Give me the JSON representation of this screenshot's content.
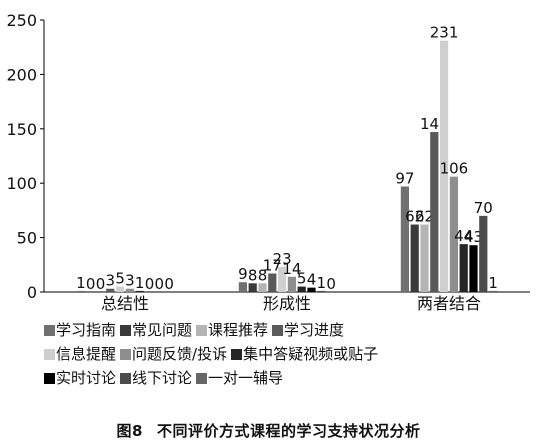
{
  "chart_data": {
    "type": "bar",
    "categories": [
      "总结性",
      "形成性",
      "两者结合"
    ],
    "ylim": [
      0,
      250
    ],
    "yticks": [
      0,
      50,
      100,
      150,
      200,
      250
    ],
    "series": [
      {
        "name": "学习指南",
        "color": "#707070",
        "values": [
          1,
          9,
          97
        ]
      },
      {
        "name": "常见问题",
        "color": "#3a3a3a",
        "values": [
          0,
          8,
          62
        ]
      },
      {
        "name": "课程推荐",
        "color": "#b4b4b4",
        "values": [
          0,
          8,
          62
        ]
      },
      {
        "name": "学习进度",
        "color": "#5a5a5a",
        "values": [
          3,
          17,
          147
        ]
      },
      {
        "name": "信息提醒",
        "color": "#cfcfcf",
        "values": [
          5,
          23,
          231
        ]
      },
      {
        "name": "问题反馈/投诉",
        "color": "#8e8e8e",
        "values": [
          3,
          14,
          106
        ]
      },
      {
        "name": "集中答疑视频或贴子",
        "color": "#262626",
        "values": [
          1,
          5,
          44
        ]
      },
      {
        "name": "实时讨论",
        "color": "#000000",
        "values": [
          0,
          4,
          43
        ]
      },
      {
        "name": "线下讨论",
        "color": "#4c4c4c",
        "values": [
          0,
          1,
          70
        ]
      },
      {
        "name": "一对一辅导",
        "color": "#666666",
        "values": [
          0,
          0,
          1
        ]
      }
    ]
  },
  "legend_rows": [
    [
      0,
      1,
      2,
      3
    ],
    [
      4,
      5,
      6
    ],
    [
      7,
      8,
      9
    ]
  ],
  "figure_caption": {
    "number": "图8",
    "text": "不同评价方式课程的学习支持状况分析"
  }
}
